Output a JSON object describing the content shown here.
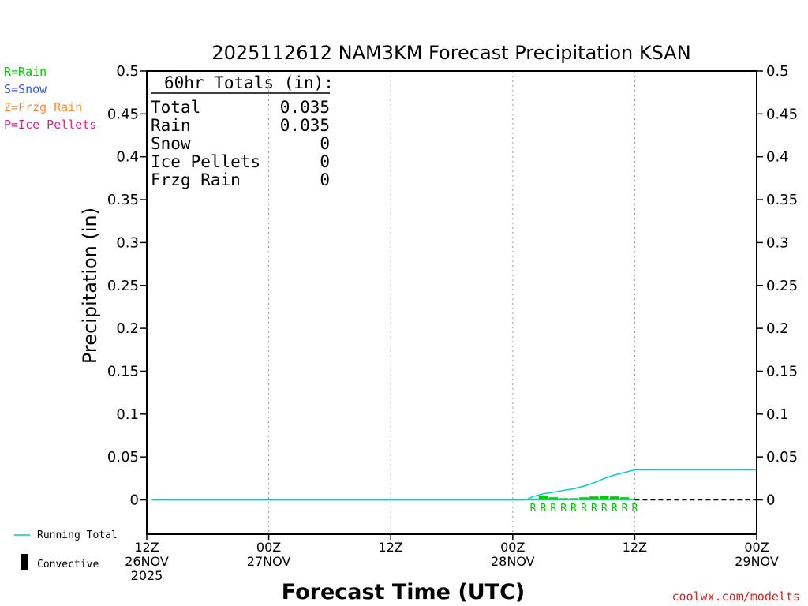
{
  "chart_data": {
    "type": "bar",
    "title": "2025112612 NAM3KM Forecast Precipitation KSAN",
    "xlabel": "Forecast Time (UTC)",
    "ylabel": "Precipitation (in)",
    "ylim": [
      -0.04,
      0.5
    ],
    "y_ticks": [
      0,
      0.05,
      0.1,
      0.15,
      0.2,
      0.25,
      0.3,
      0.35,
      0.4,
      0.45,
      0.5
    ],
    "y_tick_labels": [
      "0",
      "0.05",
      "0.1",
      "0.15",
      "0.2",
      "0.25",
      "0.3",
      "0.35",
      "0.4",
      "0.45",
      "0.5"
    ],
    "x_range_hours": [
      0,
      60
    ],
    "x_ticks": [
      {
        "hour": 0,
        "line1": "12Z",
        "line2": "26NOV",
        "line3": "2025"
      },
      {
        "hour": 12,
        "line1": "00Z",
        "line2": "27NOV",
        "line3": ""
      },
      {
        "hour": 24,
        "line1": "12Z",
        "line2": "",
        "line3": ""
      },
      {
        "hour": 36,
        "line1": "00Z",
        "line2": "28NOV",
        "line3": ""
      },
      {
        "hour": 48,
        "line1": "12Z",
        "line2": "",
        "line3": ""
      },
      {
        "hour": 60,
        "line1": "00Z",
        "line2": "29NOV",
        "line3": ""
      }
    ],
    "grid_hours": [
      12,
      24,
      36,
      48
    ],
    "hourly_rain_bars": [
      {
        "hour": 38,
        "value": 0.001
      },
      {
        "hour": 39,
        "value": 0.005
      },
      {
        "hour": 40,
        "value": 0.003
      },
      {
        "hour": 41,
        "value": 0.002
      },
      {
        "hour": 42,
        "value": 0.002
      },
      {
        "hour": 43,
        "value": 0.003
      },
      {
        "hour": 44,
        "value": 0.004
      },
      {
        "hour": 45,
        "value": 0.005
      },
      {
        "hour": 46,
        "value": 0.004
      },
      {
        "hour": 47,
        "value": 0.003
      },
      {
        "hour": 48,
        "value": 0.001
      }
    ],
    "precip_type_marker": "R",
    "precip_type_hours": [
      38,
      39,
      40,
      41,
      42,
      43,
      44,
      45,
      46,
      47,
      48
    ],
    "running_total": {
      "name": "Running Total",
      "hours": [
        0,
        37,
        37.5,
        38,
        39,
        40,
        41,
        42,
        43,
        44,
        45,
        46,
        47,
        48,
        60
      ],
      "values": [
        0,
        0,
        0.001,
        0.004,
        0.007,
        0.009,
        0.011,
        0.013,
        0.016,
        0.02,
        0.025,
        0.029,
        0.032,
        0.035,
        0.035
      ]
    },
    "zero_line_dashed_hours": [
      48,
      60
    ],
    "colors": {
      "rain": "#00cc00",
      "snow": "#3355ff",
      "frzg_rain": "#ff8c33",
      "ice_pellets": "#e0208f",
      "running_total": "#00cccc",
      "bars": "#00cc00"
    }
  },
  "legend_types": {
    "rain": "R=Rain",
    "snow": "S=Snow",
    "frzg_rain": "Z=Frzg Rain",
    "ice_pellets": "P=Ice Pellets"
  },
  "legend_series": {
    "running_total": "Running Total",
    "convective": "Convective"
  },
  "totals": {
    "heading": "60hr Totals (in):",
    "rows": [
      {
        "label": "Total",
        "value": "0.035"
      },
      {
        "label": "Rain",
        "value": "0.035"
      },
      {
        "label": "Snow",
        "value": "0"
      },
      {
        "label": "Ice Pellets",
        "value": "0"
      },
      {
        "label": "Frzg Rain",
        "value": "0"
      }
    ]
  },
  "credit": "coolwx.com/modelts"
}
